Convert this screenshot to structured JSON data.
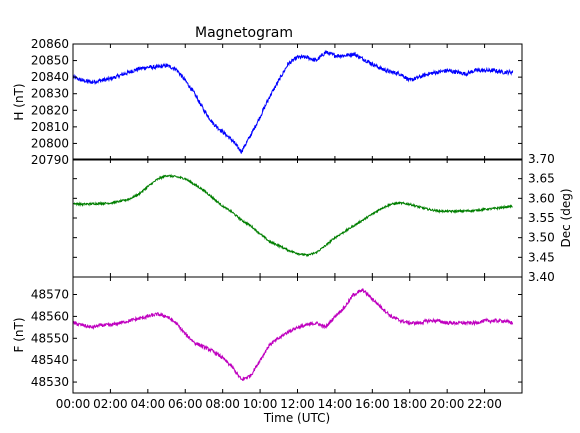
{
  "chart_data": {
    "type": "line",
    "title": "Magnetogram",
    "xlabel": "Time (UTC)",
    "x_ticks": [
      "00:00",
      "02:00",
      "04:00",
      "06:00",
      "08:00",
      "10:00",
      "12:00",
      "14:00",
      "16:00",
      "18:00",
      "20:00",
      "22:00"
    ],
    "x_tick_hours": [
      0,
      2,
      4,
      6,
      8,
      10,
      12,
      14,
      16,
      18,
      20,
      22
    ],
    "xlim_hours": [
      0,
      24
    ],
    "panels": [
      {
        "name": "h-panel",
        "ylabel": "H (nT)",
        "ylabel_side": "left",
        "ylim": [
          20790,
          20860
        ],
        "y_ticks": [
          20790,
          20800,
          20810,
          20820,
          20830,
          20840,
          20850,
          20860
        ],
        "y_tick_labels": [
          "20790",
          "20800",
          "20810",
          "20820",
          "20830",
          "20840",
          "20850",
          "20860"
        ],
        "color": "#0000ff",
        "x_hours": [
          0,
          0.5,
          1,
          1.5,
          2,
          2.5,
          3,
          3.5,
          4,
          4.5,
          5,
          5.5,
          6,
          6.5,
          7,
          7.5,
          8,
          8.5,
          9,
          9.5,
          10,
          10.5,
          11,
          11.5,
          12,
          12.5,
          13,
          13.5,
          14,
          14.5,
          15,
          15.5,
          16,
          16.5,
          17,
          17.5,
          18,
          18.5,
          19,
          19.5,
          20,
          20.5,
          21,
          21.5,
          22,
          22.5,
          23,
          23.5
        ],
        "values": [
          20840,
          20838,
          20837,
          20838,
          20839,
          20841,
          20843,
          20845,
          20846,
          20846,
          20847,
          20845,
          20838,
          20830,
          20820,
          20812,
          20807,
          20802,
          20795,
          20805,
          20816,
          20828,
          20838,
          20848,
          20852,
          20852,
          20850,
          20855,
          20853,
          20853,
          20854,
          20851,
          20848,
          20845,
          20843,
          20842,
          20838,
          20840,
          20842,
          20843,
          20844,
          20843,
          20842,
          20844,
          20844,
          20844,
          20843,
          20843
        ],
        "noise": 1.2
      },
      {
        "name": "dec-panel",
        "ylabel": "Dec (deg)",
        "ylabel_side": "right",
        "ylim": [
          3.4,
          3.7
        ],
        "y_ticks": [
          3.4,
          3.45,
          3.5,
          3.55,
          3.6,
          3.65,
          3.7
        ],
        "y_tick_labels": [
          "3.40",
          "3.45",
          "3.50",
          "3.55",
          "3.60",
          "3.65",
          "3.70"
        ],
        "color": "#007f00",
        "x_hours": [
          0,
          0.5,
          1,
          1.5,
          2,
          2.5,
          3,
          3.5,
          4,
          4.5,
          5,
          5.5,
          6,
          6.5,
          7,
          7.5,
          8,
          8.5,
          9,
          9.5,
          10,
          10.5,
          11,
          11.5,
          12,
          12.5,
          13,
          13.5,
          14,
          14.5,
          15,
          15.5,
          16,
          16.5,
          17,
          17.5,
          18,
          18.5,
          19,
          19.5,
          20,
          20.5,
          21,
          21.5,
          22,
          22.5,
          23,
          23.5
        ],
        "values": [
          3.587,
          3.585,
          3.586,
          3.587,
          3.588,
          3.592,
          3.598,
          3.61,
          3.63,
          3.648,
          3.658,
          3.655,
          3.65,
          3.635,
          3.62,
          3.6,
          3.58,
          3.565,
          3.545,
          3.53,
          3.51,
          3.49,
          3.48,
          3.468,
          3.46,
          3.455,
          3.462,
          3.48,
          3.5,
          3.515,
          3.53,
          3.545,
          3.56,
          3.575,
          3.585,
          3.588,
          3.585,
          3.578,
          3.572,
          3.568,
          3.567,
          3.567,
          3.568,
          3.569,
          3.572,
          3.574,
          3.577,
          3.58
        ],
        "noise": 0.0025
      },
      {
        "name": "f-panel",
        "ylabel": "F (nT)",
        "ylabel_side": "left",
        "ylim": [
          48525,
          48578
        ],
        "y_ticks": [
          48530,
          48540,
          48550,
          48560,
          48570
        ],
        "y_tick_labels": [
          "48530",
          "48540",
          "48550",
          "48560",
          "48570"
        ],
        "color": "#bf00bf",
        "x_hours": [
          0,
          0.5,
          1,
          1.5,
          2,
          2.5,
          3,
          3.5,
          4,
          4.5,
          5,
          5.5,
          6,
          6.5,
          7,
          7.5,
          8,
          8.5,
          9,
          9.5,
          10,
          10.5,
          11,
          11.5,
          12,
          12.5,
          13,
          13.5,
          14,
          14.5,
          15,
          15.5,
          16,
          16.5,
          17,
          17.5,
          18,
          18.5,
          19,
          19.5,
          20,
          20.5,
          21,
          21.5,
          22,
          22.5,
          23,
          23.5
        ],
        "values": [
          48557,
          48556,
          48555,
          48556,
          48556,
          48557,
          48558,
          48559,
          48560,
          48561,
          48560,
          48557,
          48552,
          48548,
          48546,
          48544,
          48541,
          48537,
          48531,
          48533,
          48540,
          48547,
          48550,
          48553,
          48555,
          48556,
          48557,
          48555,
          48560,
          48564,
          48570,
          48572,
          48568,
          48564,
          48560,
          48558,
          48557,
          48557,
          48558,
          48558,
          48557,
          48557,
          48557,
          48557,
          48558,
          48558,
          48558,
          48557
        ],
        "noise": 0.8
      }
    ],
    "grid": false,
    "legend": "none"
  }
}
